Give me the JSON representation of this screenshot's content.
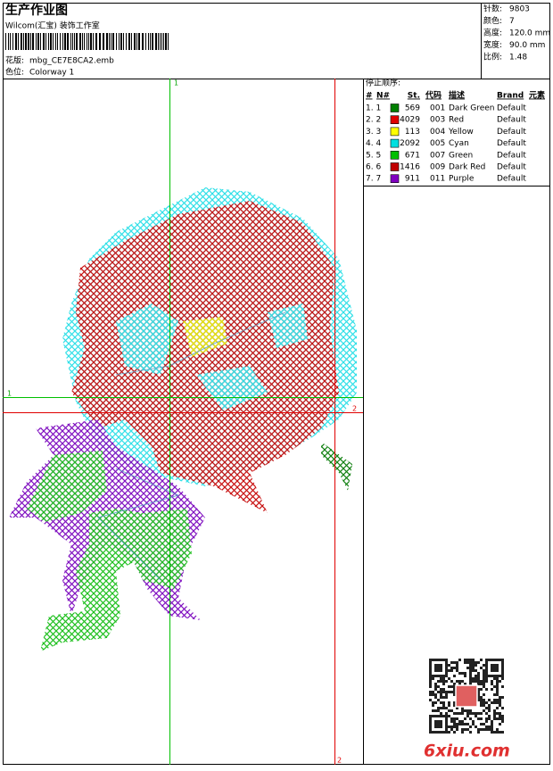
{
  "header": {
    "title": "生产作业图",
    "company": "Wilcom(汇宝) 装饰工作室",
    "design_label": "花版:",
    "design": "mbg_CE7E8CA2.emb",
    "colorway_label": "色位:",
    "colorway": "Colorway 1"
  },
  "stats": [
    {
      "label": "针数:",
      "value": "9803"
    },
    {
      "label": "颜色:",
      "value": "7"
    },
    {
      "label": "高度:",
      "value": "120.0 mm"
    },
    {
      "label": "宽度:",
      "value": "90.0 mm"
    },
    {
      "label": "比例:",
      "value": "1.48"
    }
  ],
  "stop_sequence": {
    "title": "停止顺序:",
    "columns": [
      "#",
      "N#",
      "St.",
      "代码",
      "描述",
      "Brand",
      "元素"
    ],
    "rows": [
      {
        "index": "1. 1",
        "color": "#008000",
        "stitches": "569",
        "code": "001",
        "description": "Dark Green",
        "brand": "Default"
      },
      {
        "index": "2. 2",
        "color": "#e00000",
        "stitches": "4029",
        "code": "003",
        "description": "Red",
        "brand": "Default"
      },
      {
        "index": "3. 3",
        "color": "#ffff00",
        "stitches": "113",
        "code": "004",
        "description": "Yellow",
        "brand": "Default"
      },
      {
        "index": "4. 4",
        "color": "#00e0e0",
        "stitches": "2092",
        "code": "005",
        "description": "Cyan",
        "brand": "Default"
      },
      {
        "index": "5. 5",
        "color": "#00c000",
        "stitches": "671",
        "code": "007",
        "description": "Green",
        "brand": "Default"
      },
      {
        "index": "6. 6",
        "color": "#c00000",
        "stitches": "1416",
        "code": "009",
        "description": "Dark Red",
        "brand": "Default"
      },
      {
        "index": "7. 7",
        "color": "#8000c0",
        "stitches": "911",
        "code": "011",
        "description": "Purple",
        "brand": "Default"
      }
    ]
  },
  "guides": {
    "vertical_green": "1",
    "horizontal_green": "1",
    "vertical_red": "2",
    "horizontal_red": "2"
  },
  "watermark": "6xiu.com"
}
